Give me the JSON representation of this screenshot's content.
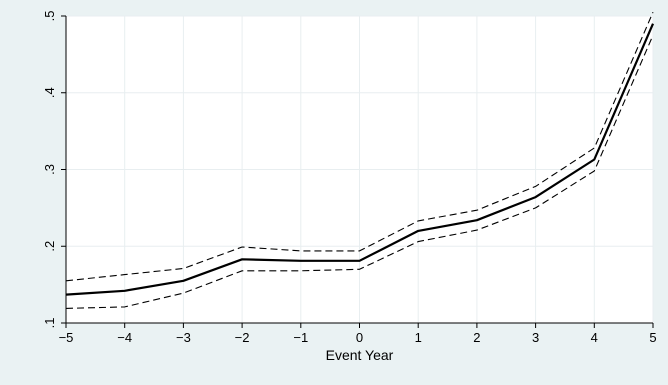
{
  "chart_data": {
    "type": "line",
    "title": "",
    "xlabel": "Event Year",
    "ylabel": "",
    "xlim": [
      -5,
      5
    ],
    "ylim": [
      0.1,
      0.5
    ],
    "x_ticks": [
      -5,
      -4,
      -3,
      -2,
      -1,
      0,
      1,
      2,
      3,
      4,
      5
    ],
    "x_tick_labels": [
      "−5",
      "−4",
      "−3",
      "−2",
      "−1",
      "0",
      "1",
      "2",
      "3",
      "4",
      "5"
    ],
    "y_ticks": [
      0.1,
      0.2,
      0.3,
      0.4,
      0.5
    ],
    "y_tick_labels": [
      ".1",
      ".2",
      ".3",
      ".4",
      ".5"
    ],
    "grid": true,
    "legend": "none",
    "colors": {
      "plot_background": "#ffffff",
      "outer_background": "#eaf2f3",
      "grid": "#e8eef0",
      "line": "#000000"
    },
    "x": [
      -5,
      -4,
      -3,
      -2,
      -1,
      0,
      1,
      2,
      3,
      4,
      5
    ],
    "series": [
      {
        "style": "solid",
        "values": [
          0.137,
          0.142,
          0.155,
          0.183,
          0.181,
          0.181,
          0.22,
          0.234,
          0.264,
          0.313,
          0.49
        ]
      },
      {
        "style": "dashed",
        "values": [
          0.155,
          0.163,
          0.171,
          0.199,
          0.194,
          0.194,
          0.233,
          0.247,
          0.278,
          0.328,
          0.505
        ]
      },
      {
        "style": "dashed",
        "values": [
          0.119,
          0.121,
          0.139,
          0.168,
          0.168,
          0.17,
          0.206,
          0.221,
          0.25,
          0.298,
          0.475
        ]
      }
    ]
  }
}
